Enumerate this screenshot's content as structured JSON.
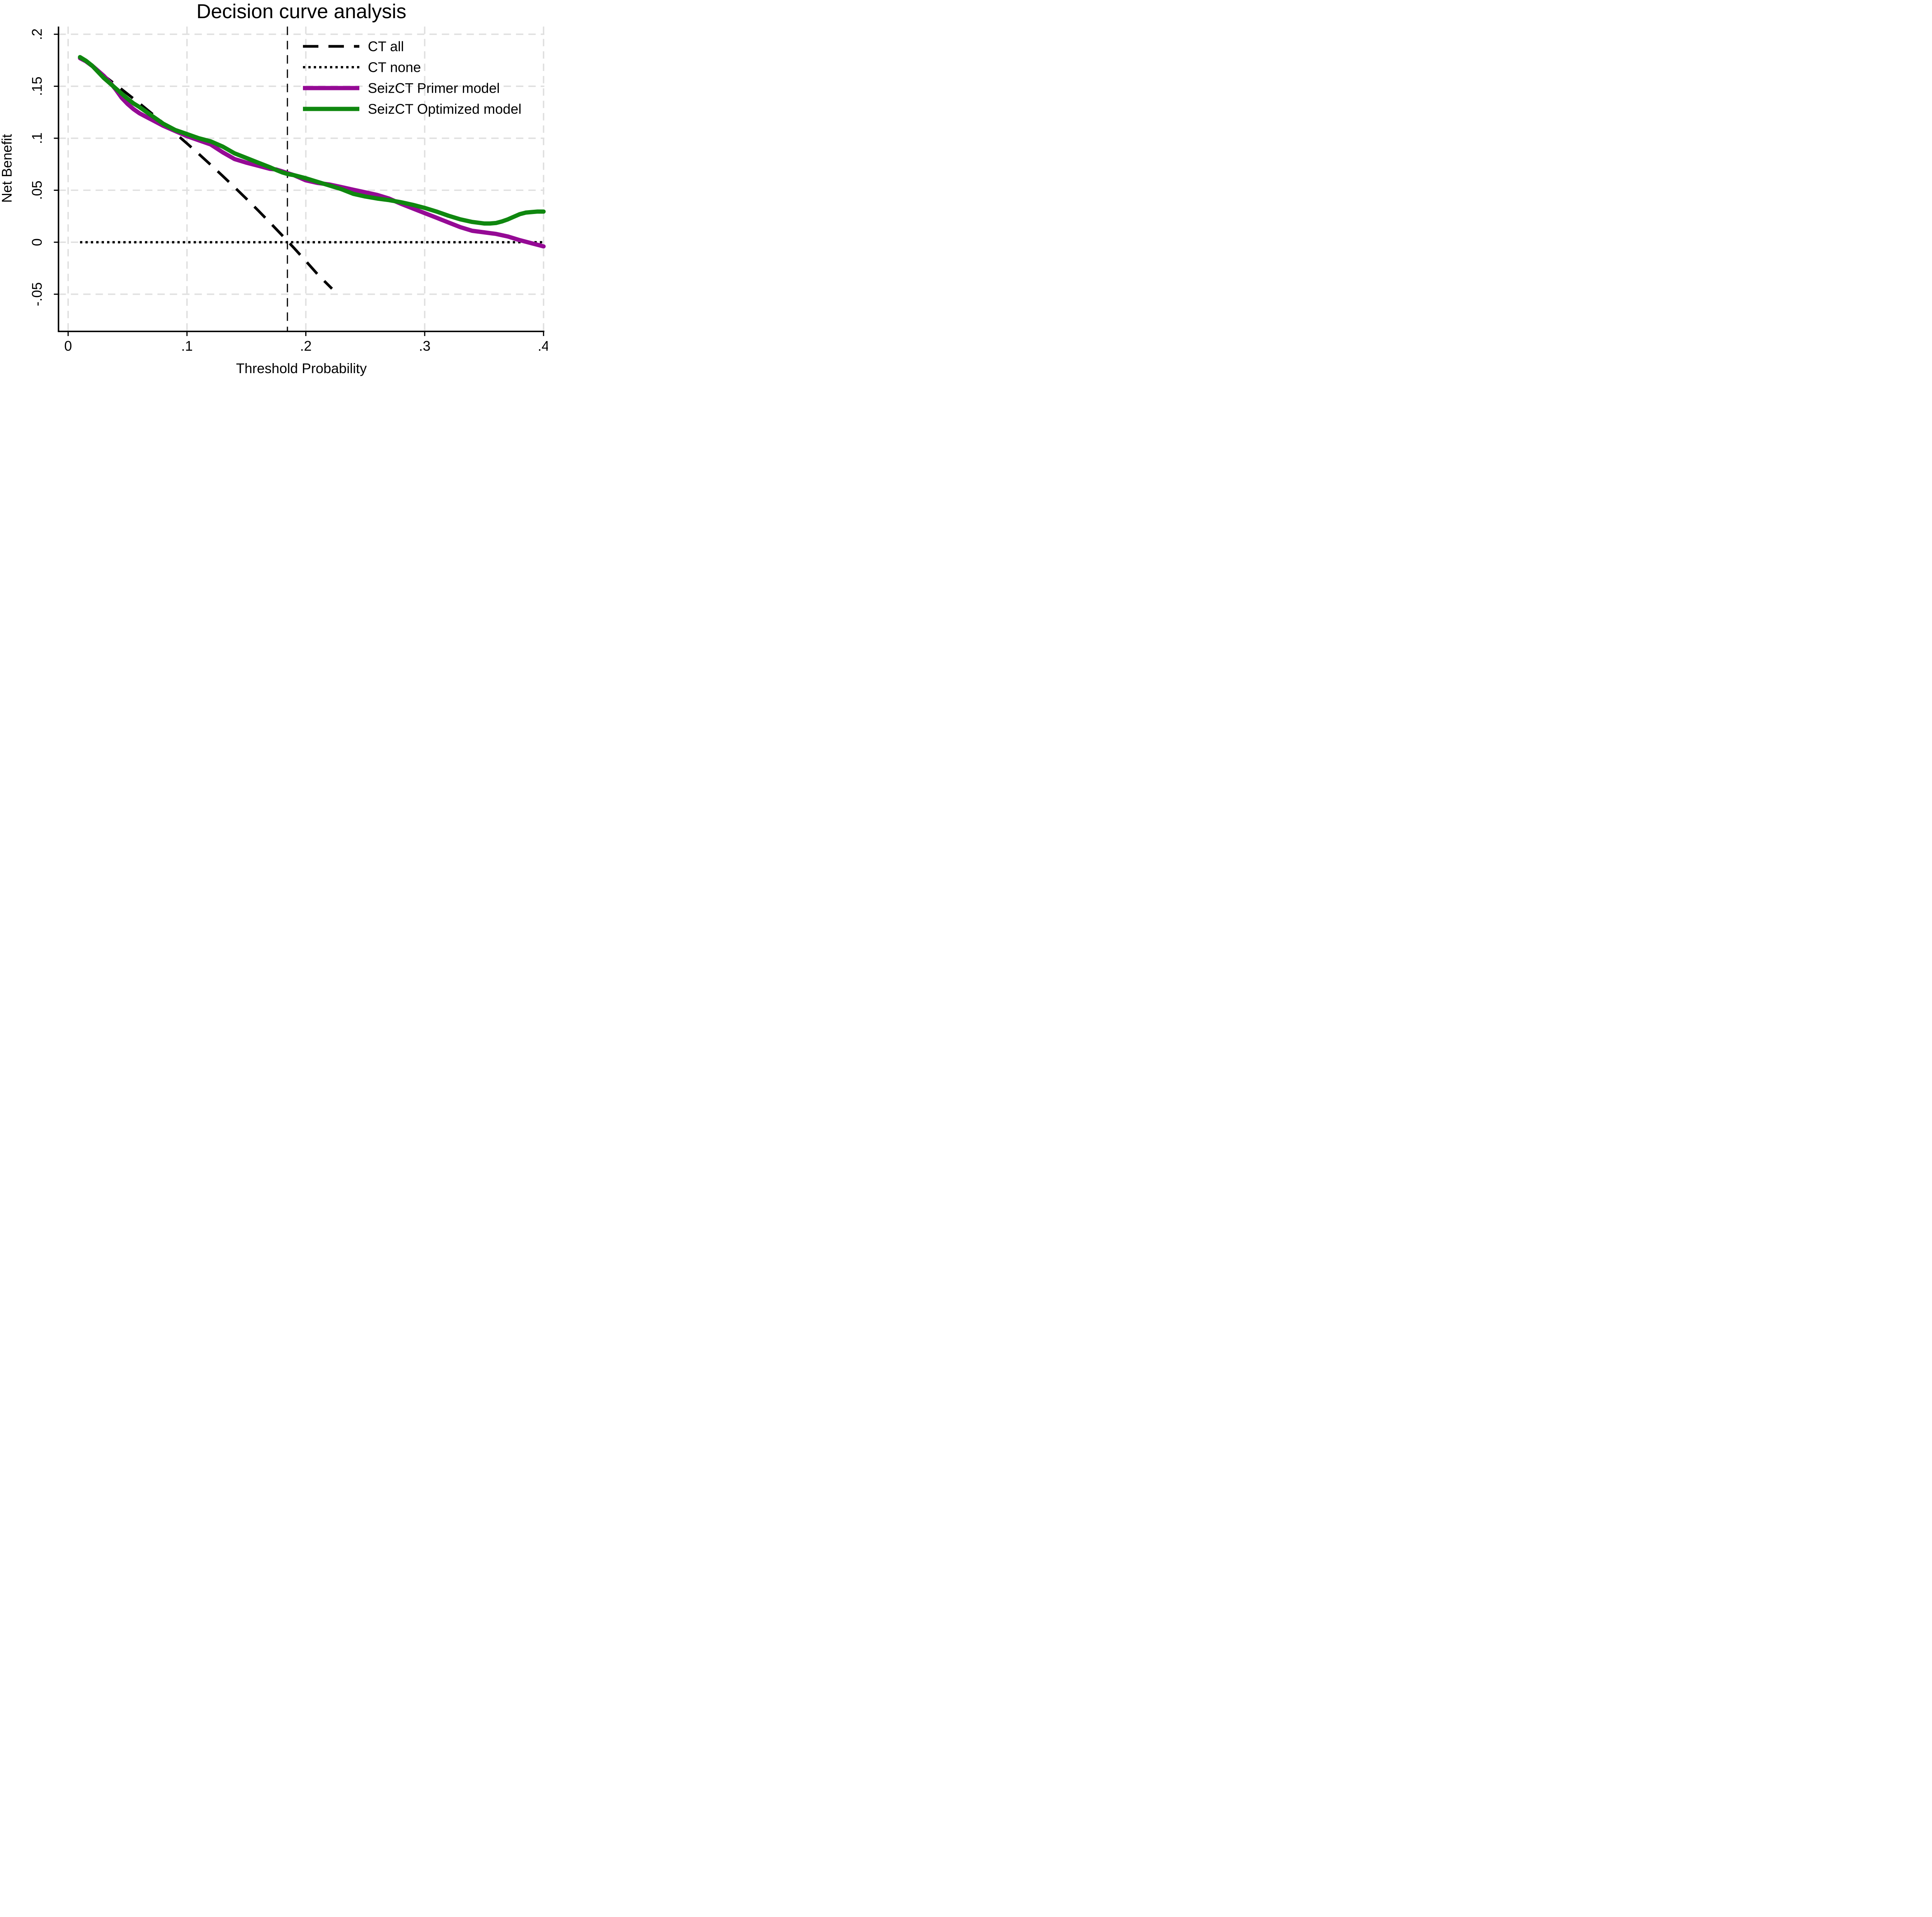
{
  "title": "Decision curve analysis",
  "colors": {
    "title": "#233764",
    "axis": "#000000",
    "grid": "#dfdfdf",
    "ct_all": "#000000",
    "ct_none": "#000000",
    "primer": "#950a95",
    "optimized": "#0f870f",
    "background": "#ffffff"
  },
  "chart_data": {
    "type": "line",
    "title": "Decision curve analysis",
    "xlabel": "Threshold Probability",
    "ylabel": "Net Benefit",
    "xlim": [
      0,
      0.4
    ],
    "ylim": [
      -0.05,
      0.2
    ],
    "grid": true,
    "grid_style": "light-gray long-dash, horizontal and vertical at every tick",
    "legend_position": "inside top-right, no frame",
    "xticks": [
      {
        "value": 0.0,
        "label": "0"
      },
      {
        "value": 0.1,
        "label": ".1"
      },
      {
        "value": 0.2,
        "label": ".2"
      },
      {
        "value": 0.3,
        "label": ".3"
      },
      {
        "value": 0.4,
        "label": ".4"
      }
    ],
    "yticks": [
      {
        "value": -0.05,
        "label": "-.05"
      },
      {
        "value": 0.0,
        "label": "0"
      },
      {
        "value": 0.05,
        "label": ".05"
      },
      {
        "value": 0.1,
        "label": ".1"
      },
      {
        "value": 0.15,
        "label": ".15"
      },
      {
        "value": 0.2,
        "label": ".2"
      }
    ],
    "reference_vline": {
      "x": 0.1845,
      "color": "#000000",
      "style": "dashed",
      "note": "vertical dashed line where CT-all crosses net benefit 0"
    },
    "series": [
      {
        "name": "CT all",
        "color": "#000000",
        "style": "long-dash",
        "points": [
          [
            0.01,
            0.1773
          ],
          [
            0.02,
            0.1689
          ],
          [
            0.03,
            0.1603
          ],
          [
            0.04,
            0.1516
          ],
          [
            0.05,
            0.1426
          ],
          [
            0.06,
            0.1335
          ],
          [
            0.07,
            0.1242
          ],
          [
            0.08,
            0.1147
          ],
          [
            0.09,
            0.1049
          ],
          [
            0.1,
            0.095
          ],
          [
            0.11,
            0.0848
          ],
          [
            0.12,
            0.0744
          ],
          [
            0.13,
            0.0638
          ],
          [
            0.14,
            0.0529
          ],
          [
            0.15,
            0.0418
          ],
          [
            0.16,
            0.0304
          ],
          [
            0.17,
            0.0187
          ],
          [
            0.18,
            0.0067
          ],
          [
            0.19,
            -0.0055
          ],
          [
            0.2,
            -0.0181
          ],
          [
            0.21,
            -0.031
          ],
          [
            0.222,
            -0.0447
          ]
        ]
      },
      {
        "name": "CT none",
        "color": "#000000",
        "style": "dotted",
        "points": [
          [
            0.01,
            0.0
          ],
          [
            0.401,
            0.0
          ]
        ]
      },
      {
        "name": "SeizCT Primer model",
        "color": "#950a95",
        "style": "solid",
        "points": [
          [
            0.01,
            0.177
          ],
          [
            0.015,
            0.174
          ],
          [
            0.02,
            0.17
          ],
          [
            0.025,
            0.165
          ],
          [
            0.03,
            0.16
          ],
          [
            0.035,
            0.154
          ],
          [
            0.04,
            0.147
          ],
          [
            0.045,
            0.139
          ],
          [
            0.05,
            0.133
          ],
          [
            0.055,
            0.128
          ],
          [
            0.06,
            0.124
          ],
          [
            0.065,
            0.121
          ],
          [
            0.07,
            0.118
          ],
          [
            0.075,
            0.115
          ],
          [
            0.08,
            0.112
          ],
          [
            0.09,
            0.107
          ],
          [
            0.1,
            0.102
          ],
          [
            0.11,
            0.098
          ],
          [
            0.12,
            0.094
          ],
          [
            0.13,
            0.0865
          ],
          [
            0.14,
            0.08
          ],
          [
            0.15,
            0.0765
          ],
          [
            0.16,
            0.0735
          ],
          [
            0.17,
            0.0705
          ],
          [
            0.175,
            0.07
          ],
          [
            0.18,
            0.0682
          ],
          [
            0.185,
            0.0663
          ],
          [
            0.19,
            0.0645
          ],
          [
            0.2,
            0.0595
          ],
          [
            0.21,
            0.057
          ],
          [
            0.22,
            0.0555
          ],
          [
            0.23,
            0.053
          ],
          [
            0.24,
            0.0505
          ],
          [
            0.25,
            0.048
          ],
          [
            0.26,
            0.0455
          ],
          [
            0.27,
            0.042
          ],
          [
            0.275,
            0.0395
          ],
          [
            0.28,
            0.037
          ],
          [
            0.29,
            0.0325
          ],
          [
            0.3,
            0.028
          ],
          [
            0.31,
            0.0235
          ],
          [
            0.32,
            0.019
          ],
          [
            0.33,
            0.0145
          ],
          [
            0.34,
            0.011
          ],
          [
            0.35,
            0.0095
          ],
          [
            0.36,
            0.008
          ],
          [
            0.37,
            0.0055
          ],
          [
            0.38,
            0.002
          ],
          [
            0.39,
            -0.001
          ],
          [
            0.4,
            -0.004
          ]
        ]
      },
      {
        "name": "SeizCT Optimized model",
        "color": "#0f870f",
        "style": "solid",
        "points": [
          [
            0.01,
            0.178
          ],
          [
            0.015,
            0.1745
          ],
          [
            0.02,
            0.17
          ],
          [
            0.025,
            0.164
          ],
          [
            0.03,
            0.158
          ],
          [
            0.035,
            0.153
          ],
          [
            0.04,
            0.148
          ],
          [
            0.045,
            0.143
          ],
          [
            0.05,
            0.138
          ],
          [
            0.055,
            0.1335
          ],
          [
            0.06,
            0.13
          ],
          [
            0.065,
            0.126
          ],
          [
            0.07,
            0.122
          ],
          [
            0.075,
            0.118
          ],
          [
            0.08,
            0.114
          ],
          [
            0.09,
            0.108
          ],
          [
            0.1,
            0.104
          ],
          [
            0.11,
            0.1
          ],
          [
            0.12,
            0.097
          ],
          [
            0.13,
            0.092
          ],
          [
            0.14,
            0.0855
          ],
          [
            0.15,
            0.081
          ],
          [
            0.16,
            0.0765
          ],
          [
            0.17,
            0.072
          ],
          [
            0.175,
            0.0695
          ],
          [
            0.18,
            0.0672
          ],
          [
            0.185,
            0.0655
          ],
          [
            0.19,
            0.0645
          ],
          [
            0.2,
            0.0615
          ],
          [
            0.21,
            0.058
          ],
          [
            0.22,
            0.0545
          ],
          [
            0.23,
            0.051
          ],
          [
            0.24,
            0.0465
          ],
          [
            0.25,
            0.044
          ],
          [
            0.26,
            0.042
          ],
          [
            0.27,
            0.0405
          ],
          [
            0.275,
            0.0395
          ],
          [
            0.28,
            0.0385
          ],
          [
            0.29,
            0.036
          ],
          [
            0.3,
            0.033
          ],
          [
            0.31,
            0.0295
          ],
          [
            0.32,
            0.0255
          ],
          [
            0.33,
            0.022
          ],
          [
            0.34,
            0.0195
          ],
          [
            0.35,
            0.018
          ],
          [
            0.355,
            0.018
          ],
          [
            0.36,
            0.0185
          ],
          [
            0.365,
            0.02
          ],
          [
            0.37,
            0.022
          ],
          [
            0.375,
            0.0245
          ],
          [
            0.38,
            0.027
          ],
          [
            0.385,
            0.0285
          ],
          [
            0.39,
            0.029
          ],
          [
            0.395,
            0.0295
          ],
          [
            0.4,
            0.0295
          ]
        ]
      }
    ],
    "legend": [
      {
        "label": "CT all",
        "series": 0
      },
      {
        "label": "CT none",
        "series": 1
      },
      {
        "label": "SeizCT Primer model",
        "series": 2
      },
      {
        "label": "SeizCT Optimized model",
        "series": 3
      }
    ]
  }
}
